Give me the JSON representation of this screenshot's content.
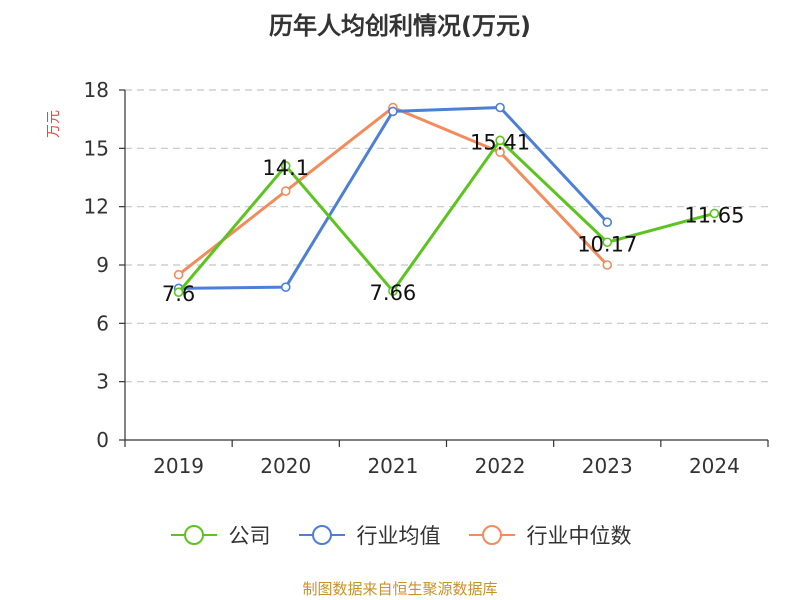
{
  "chart_data": {
    "type": "line",
    "title": "历年人均创利情况(万元)",
    "ylabel": "万元",
    "xlabel": "",
    "categories": [
      "2019",
      "2020",
      "2021",
      "2022",
      "2023",
      "2024"
    ],
    "ylim": [
      0,
      18
    ],
    "yticks": [
      0,
      3,
      6,
      9,
      12,
      15,
      18
    ],
    "grid": true,
    "legend_position": "bottom",
    "series": [
      {
        "name": "公司",
        "color": "#5cc41f",
        "values": [
          7.6,
          14.1,
          7.66,
          15.41,
          10.17,
          11.65
        ],
        "labels": [
          "7.6",
          "14.1",
          "7.66",
          "15.41",
          "10.17",
          "11.65"
        ]
      },
      {
        "name": "行业均值",
        "color": "#4c7fd6",
        "values": [
          7.8,
          7.86,
          16.9,
          17.1,
          11.2,
          null
        ]
      },
      {
        "name": "行业中位数",
        "color": "#f28c5c",
        "values": [
          8.5,
          12.8,
          17.1,
          14.8,
          9.0,
          null
        ]
      }
    ]
  },
  "footer": "制图数据来自恒生聚源数据库"
}
